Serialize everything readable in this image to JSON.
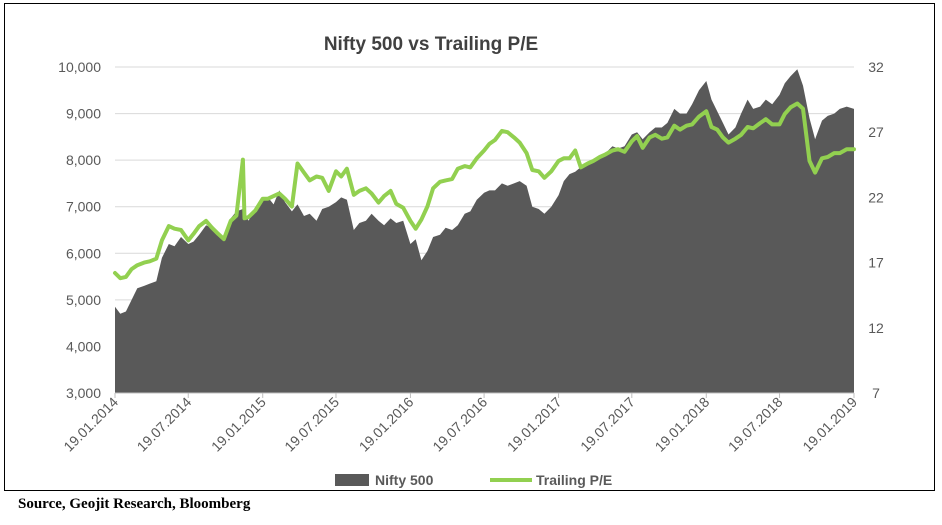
{
  "source_note": "Source, Geojit Research, Bloomberg",
  "chart_data": {
    "type": "area",
    "title": "Nifty 500 vs Trailing P/E",
    "colors": {
      "area": "#595959",
      "line": "#92d050",
      "text": "#595959",
      "title": "#404040",
      "grid": "#d9d9d9"
    },
    "left_axis": {
      "min": 3000,
      "max": 10000,
      "ticks": [
        "3,000",
        "4,000",
        "5,000",
        "6,000",
        "7,000",
        "8,000",
        "9,000",
        "10,000"
      ]
    },
    "right_axis": {
      "min": 7,
      "max": 32,
      "ticks": [
        "7",
        "12",
        "17",
        "22",
        "27",
        "32"
      ]
    },
    "x_range": [
      "2014-01-19",
      "2019-01-19"
    ],
    "x_ticks": [
      "19.01.2014",
      "19.07.2014",
      "19.01.2015",
      "19.07.2015",
      "19.01.2016",
      "19.07.2016",
      "19.01.2017",
      "19.07.2017",
      "19.01.2018",
      "19.07.2018",
      "19.01.2019"
    ],
    "legend": {
      "position": "bottom",
      "items": [
        "Nifty 500",
        "Trailing P/E"
      ]
    },
    "series": [
      {
        "name": "Nifty 500",
        "kind": "area",
        "axis": "left",
        "points": [
          [
            "2014-01-19",
            4850
          ],
          [
            "2014-02-01",
            4700
          ],
          [
            "2014-02-15",
            4750
          ],
          [
            "2014-03-01",
            5000
          ],
          [
            "2014-03-15",
            5250
          ],
          [
            "2014-04-01",
            5300
          ],
          [
            "2014-04-15",
            5350
          ],
          [
            "2014-05-01",
            5400
          ],
          [
            "2014-05-15",
            5900
          ],
          [
            "2014-06-01",
            6200
          ],
          [
            "2014-06-15",
            6150
          ],
          [
            "2014-07-01",
            6350
          ],
          [
            "2014-07-19",
            6200
          ],
          [
            "2014-08-01",
            6250
          ],
          [
            "2014-08-15",
            6400
          ],
          [
            "2014-09-01",
            6600
          ],
          [
            "2014-09-15",
            6550
          ],
          [
            "2014-10-01",
            6450
          ],
          [
            "2014-10-15",
            6350
          ],
          [
            "2014-11-01",
            6750
          ],
          [
            "2014-11-15",
            6900
          ],
          [
            "2014-12-01",
            6950
          ],
          [
            "2014-12-15",
            6700
          ],
          [
            "2015-01-01",
            7000
          ],
          [
            "2015-01-19",
            7150
          ],
          [
            "2015-02-01",
            7200
          ],
          [
            "2015-02-15",
            7050
          ],
          [
            "2015-03-01",
            7350
          ],
          [
            "2015-03-15",
            7100
          ],
          [
            "2015-04-01",
            6900
          ],
          [
            "2015-04-15",
            7050
          ],
          [
            "2015-05-01",
            6800
          ],
          [
            "2015-05-15",
            6850
          ],
          [
            "2015-06-01",
            6700
          ],
          [
            "2015-06-15",
            6950
          ],
          [
            "2015-07-01",
            7000
          ],
          [
            "2015-07-19",
            7100
          ],
          [
            "2015-08-01",
            7200
          ],
          [
            "2015-08-15",
            7150
          ],
          [
            "2015-09-01",
            6500
          ],
          [
            "2015-09-15",
            6650
          ],
          [
            "2015-10-01",
            6700
          ],
          [
            "2015-10-15",
            6850
          ],
          [
            "2015-11-01",
            6700
          ],
          [
            "2015-11-15",
            6600
          ],
          [
            "2015-12-01",
            6750
          ],
          [
            "2015-12-15",
            6650
          ],
          [
            "2016-01-01",
            6700
          ],
          [
            "2016-01-19",
            6200
          ],
          [
            "2016-02-01",
            6300
          ],
          [
            "2016-02-15",
            5850
          ],
          [
            "2016-03-01",
            6050
          ],
          [
            "2016-03-15",
            6350
          ],
          [
            "2016-04-01",
            6400
          ],
          [
            "2016-04-15",
            6550
          ],
          [
            "2016-05-01",
            6500
          ],
          [
            "2016-05-15",
            6600
          ],
          [
            "2016-06-01",
            6850
          ],
          [
            "2016-06-15",
            6900
          ],
          [
            "2016-07-01",
            7150
          ],
          [
            "2016-07-19",
            7300
          ],
          [
            "2016-08-01",
            7350
          ],
          [
            "2016-08-15",
            7350
          ],
          [
            "2016-09-01",
            7500
          ],
          [
            "2016-09-15",
            7450
          ],
          [
            "2016-10-01",
            7500
          ],
          [
            "2016-10-15",
            7550
          ],
          [
            "2016-11-01",
            7450
          ],
          [
            "2016-11-15",
            7000
          ],
          [
            "2016-12-01",
            6950
          ],
          [
            "2016-12-15",
            6850
          ],
          [
            "2017-01-01",
            7000
          ],
          [
            "2017-01-19",
            7250
          ],
          [
            "2017-02-01",
            7550
          ],
          [
            "2017-02-15",
            7700
          ],
          [
            "2017-03-01",
            7750
          ],
          [
            "2017-03-15",
            7850
          ],
          [
            "2017-04-01",
            7950
          ],
          [
            "2017-04-15",
            7950
          ],
          [
            "2017-05-01",
            8100
          ],
          [
            "2017-05-15",
            8150
          ],
          [
            "2017-06-01",
            8300
          ],
          [
            "2017-06-15",
            8250
          ],
          [
            "2017-07-01",
            8300
          ],
          [
            "2017-07-19",
            8550
          ],
          [
            "2017-08-01",
            8600
          ],
          [
            "2017-08-15",
            8450
          ],
          [
            "2017-09-01",
            8600
          ],
          [
            "2017-09-15",
            8700
          ],
          [
            "2017-10-01",
            8700
          ],
          [
            "2017-10-15",
            8800
          ],
          [
            "2017-11-01",
            9100
          ],
          [
            "2017-11-15",
            9000
          ],
          [
            "2017-12-01",
            9000
          ],
          [
            "2017-12-15",
            9200
          ],
          [
            "2018-01-01",
            9500
          ],
          [
            "2018-01-19",
            9700
          ],
          [
            "2018-02-01",
            9300
          ],
          [
            "2018-02-15",
            9050
          ],
          [
            "2018-03-01",
            8800
          ],
          [
            "2018-03-15",
            8550
          ],
          [
            "2018-04-01",
            8700
          ],
          [
            "2018-04-15",
            9000
          ],
          [
            "2018-05-01",
            9300
          ],
          [
            "2018-05-15",
            9100
          ],
          [
            "2018-06-01",
            9150
          ],
          [
            "2018-06-15",
            9300
          ],
          [
            "2018-07-01",
            9200
          ],
          [
            "2018-07-19",
            9400
          ],
          [
            "2018-08-01",
            9650
          ],
          [
            "2018-08-15",
            9800
          ],
          [
            "2018-09-01",
            9950
          ],
          [
            "2018-09-15",
            9600
          ],
          [
            "2018-10-01",
            8900
          ],
          [
            "2018-10-15",
            8450
          ],
          [
            "2018-11-01",
            8850
          ],
          [
            "2018-11-15",
            8950
          ],
          [
            "2018-12-01",
            9000
          ],
          [
            "2018-12-15",
            9100
          ],
          [
            "2019-01-01",
            9150
          ],
          [
            "2019-01-19",
            9100
          ]
        ]
      },
      {
        "name": "Trailing P/E",
        "kind": "line",
        "axis": "right",
        "points": [
          [
            "2014-01-19",
            16.2
          ],
          [
            "2014-02-01",
            15.8
          ],
          [
            "2014-02-15",
            15.9
          ],
          [
            "2014-03-01",
            16.5
          ],
          [
            "2014-03-15",
            16.8
          ],
          [
            "2014-04-01",
            17.0
          ],
          [
            "2014-04-15",
            17.1
          ],
          [
            "2014-05-01",
            17.3
          ],
          [
            "2014-05-15",
            18.7
          ],
          [
            "2014-06-01",
            19.8
          ],
          [
            "2014-06-15",
            19.6
          ],
          [
            "2014-07-01",
            19.5
          ],
          [
            "2014-07-19",
            18.7
          ],
          [
            "2014-08-01",
            19.2
          ],
          [
            "2014-08-15",
            19.8
          ],
          [
            "2014-09-01",
            20.2
          ],
          [
            "2014-09-15",
            19.7
          ],
          [
            "2014-10-01",
            19.2
          ],
          [
            "2014-10-15",
            18.8
          ],
          [
            "2014-11-01",
            20.2
          ],
          [
            "2014-11-15",
            20.6
          ],
          [
            "2014-12-01",
            24.9
          ],
          [
            "2014-12-05",
            20.4
          ],
          [
            "2014-12-15",
            20.5
          ],
          [
            "2015-01-01",
            21.0
          ],
          [
            "2015-01-19",
            21.9
          ],
          [
            "2015-02-01",
            21.9
          ],
          [
            "2015-02-15",
            22.1
          ],
          [
            "2015-03-01",
            22.3
          ],
          [
            "2015-03-15",
            21.9
          ],
          [
            "2015-04-01",
            21.3
          ],
          [
            "2015-04-15",
            24.6
          ],
          [
            "2015-05-01",
            23.9
          ],
          [
            "2015-05-15",
            23.3
          ],
          [
            "2015-06-01",
            23.6
          ],
          [
            "2015-06-15",
            23.5
          ],
          [
            "2015-07-01",
            22.5
          ],
          [
            "2015-07-19",
            24.0
          ],
          [
            "2015-08-01",
            23.6
          ],
          [
            "2015-08-15",
            24.2
          ],
          [
            "2015-09-01",
            22.2
          ],
          [
            "2015-09-15",
            22.5
          ],
          [
            "2015-10-01",
            22.7
          ],
          [
            "2015-10-15",
            22.3
          ],
          [
            "2015-11-01",
            21.6
          ],
          [
            "2015-11-15",
            22.1
          ],
          [
            "2015-12-01",
            22.5
          ],
          [
            "2015-12-15",
            21.5
          ],
          [
            "2016-01-01",
            21.2
          ],
          [
            "2016-01-19",
            20.2
          ],
          [
            "2016-02-01",
            19.6
          ],
          [
            "2016-02-15",
            20.3
          ],
          [
            "2016-03-01",
            21.3
          ],
          [
            "2016-03-15",
            22.7
          ],
          [
            "2016-04-01",
            23.2
          ],
          [
            "2016-04-15",
            23.3
          ],
          [
            "2016-05-01",
            23.4
          ],
          [
            "2016-05-15",
            24.2
          ],
          [
            "2016-06-01",
            24.4
          ],
          [
            "2016-06-15",
            24.3
          ],
          [
            "2016-07-01",
            25.0
          ],
          [
            "2016-07-19",
            25.6
          ],
          [
            "2016-08-01",
            26.1
          ],
          [
            "2016-08-15",
            26.4
          ],
          [
            "2016-09-01",
            27.1
          ],
          [
            "2016-09-15",
            27.0
          ],
          [
            "2016-10-01",
            26.6
          ],
          [
            "2016-10-15",
            26.2
          ],
          [
            "2016-11-01",
            25.4
          ],
          [
            "2016-11-15",
            24.1
          ],
          [
            "2016-12-01",
            24.0
          ],
          [
            "2016-12-15",
            23.5
          ],
          [
            "2017-01-01",
            24.0
          ],
          [
            "2017-01-19",
            24.8
          ],
          [
            "2017-02-01",
            25.0
          ],
          [
            "2017-02-15",
            25.0
          ],
          [
            "2017-03-01",
            25.6
          ],
          [
            "2017-03-15",
            24.3
          ],
          [
            "2017-04-01",
            24.6
          ],
          [
            "2017-04-15",
            24.8
          ],
          [
            "2017-05-01",
            25.1
          ],
          [
            "2017-05-15",
            25.3
          ],
          [
            "2017-06-01",
            25.6
          ],
          [
            "2017-06-15",
            25.7
          ],
          [
            "2017-07-01",
            25.5
          ],
          [
            "2017-07-19",
            26.3
          ],
          [
            "2017-08-01",
            26.7
          ],
          [
            "2017-08-15",
            25.8
          ],
          [
            "2017-09-01",
            26.6
          ],
          [
            "2017-09-15",
            26.8
          ],
          [
            "2017-10-01",
            26.5
          ],
          [
            "2017-10-15",
            26.6
          ],
          [
            "2017-11-01",
            27.5
          ],
          [
            "2017-11-15",
            27.2
          ],
          [
            "2017-12-01",
            27.5
          ],
          [
            "2017-12-15",
            27.6
          ],
          [
            "2018-01-01",
            28.2
          ],
          [
            "2018-01-19",
            28.6
          ],
          [
            "2018-02-01",
            27.4
          ],
          [
            "2018-02-15",
            27.2
          ],
          [
            "2018-03-01",
            26.6
          ],
          [
            "2018-03-15",
            26.2
          ],
          [
            "2018-04-01",
            26.5
          ],
          [
            "2018-04-15",
            26.8
          ],
          [
            "2018-05-01",
            27.4
          ],
          [
            "2018-05-15",
            27.3
          ],
          [
            "2018-06-01",
            27.7
          ],
          [
            "2018-06-15",
            28.0
          ],
          [
            "2018-07-01",
            27.6
          ],
          [
            "2018-07-19",
            27.6
          ],
          [
            "2018-08-01",
            28.4
          ],
          [
            "2018-08-15",
            28.9
          ],
          [
            "2018-09-01",
            29.2
          ],
          [
            "2018-09-15",
            28.8
          ],
          [
            "2018-10-01",
            24.8
          ],
          [
            "2018-10-15",
            23.9
          ],
          [
            "2018-11-01",
            25.0
          ],
          [
            "2018-11-15",
            25.1
          ],
          [
            "2018-12-01",
            25.4
          ],
          [
            "2018-12-15",
            25.4
          ],
          [
            "2019-01-01",
            25.7
          ],
          [
            "2019-01-19",
            25.7
          ]
        ]
      }
    ]
  }
}
